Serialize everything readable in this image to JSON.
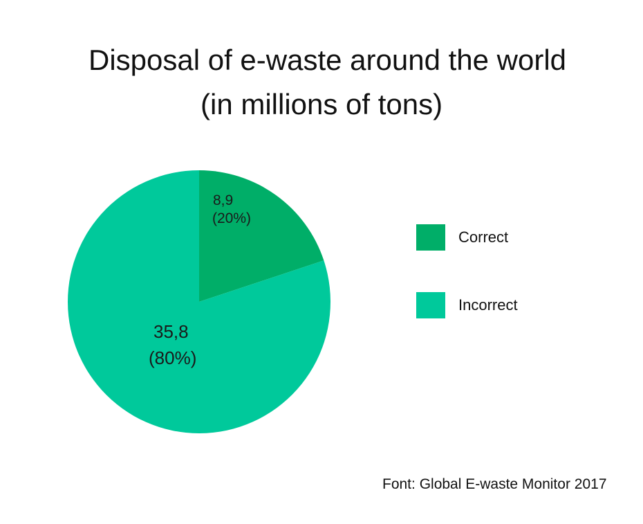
{
  "chart_data": {
    "type": "pie",
    "title": "Disposal of e-waste around the world",
    "subtitle": "(in millions of tons)",
    "legend_position": "right",
    "slices": [
      {
        "label": "Correct",
        "value": 8.9,
        "value_label": "8,9",
        "percent_label": "(20%)",
        "color": "#00ae68"
      },
      {
        "label": "Incorrect",
        "value": 35.8,
        "value_label": "35,8",
        "percent_label": "(80%)",
        "color": "#00c99b"
      }
    ]
  },
  "source": "Font: Global E-waste Monitor 2017"
}
